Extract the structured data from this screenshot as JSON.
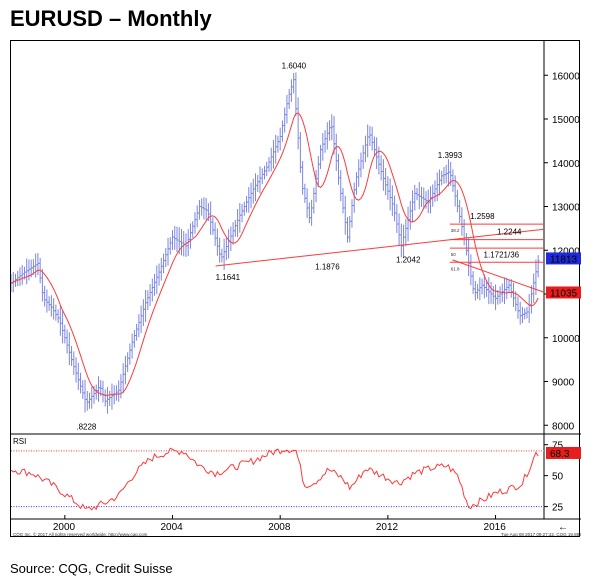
{
  "title": "EURUSD – Monthly",
  "source": "Source: CQG, Credit Suisse",
  "footer_left": "CQG Inc. © 2017 All rights reserved worldwide. http://www.cqg.com",
  "footer_right": "Tue Aug 08 2017 09:27:42, CQG 19.8826",
  "colors": {
    "price_bars": "#7b86e0",
    "moving_average": "#ff3a3a",
    "trend_lines": "#ff3a3a",
    "rsi_line": "#ff3a3a",
    "rsi_upper_line": "#ff3a3a",
    "rsi_lower_line": "#3b3bff",
    "current_price_badge": "#1f2bd8",
    "support_badge": "#e81e1e",
    "rsi_badge": "#e81e1e",
    "fib_labels": "#ff3a3a"
  },
  "chart_data": [
    {
      "type": "line",
      "title": "EURUSD – Monthly",
      "x": [
        1998.0,
        1998.5,
        1999.0,
        1999.2,
        1999.5,
        1999.8,
        2000.0,
        2000.3,
        2000.8,
        2001.3,
        2001.5,
        2002.0,
        2002.5,
        2003.0,
        2003.5,
        2004.0,
        2004.5,
        2005.0,
        2005.3,
        2005.8,
        2006.5,
        2007.0,
        2007.5,
        2008.0,
        2008.3,
        2008.5,
        2008.8,
        2009.1,
        2009.5,
        2009.9,
        2010.2,
        2010.5,
        2010.8,
        2011.3,
        2011.8,
        2012.2,
        2012.5,
        2013.0,
        2013.5,
        2014.0,
        2014.3,
        2014.8,
        2015.2,
        2015.5,
        2016.0,
        2016.5,
        2016.9,
        2017.2,
        2017.6
      ],
      "series": [
        {
          "values": [
            11250,
            11500,
            11700,
            10900,
            10700,
            10400,
            10000,
            9400,
            8500,
            8900,
            8550,
            8800,
            9900,
            10800,
            11500,
            12300,
            12100,
            13000,
            12900,
            11800,
            12800,
            13400,
            13900,
            14600,
            15500,
            15900,
            13500,
            12700,
            14300,
            14900,
            13500,
            12300,
            13600,
            14700,
            13700,
            13000,
            12100,
            13300,
            13100,
            13700,
            13800,
            12400,
            11000,
            11200,
            10900,
            11200,
            10500,
            10600,
            11810
          ],
          "note": "approximate monthly close, 4-digit quote"
        }
      ],
      "yticks": [
        8000,
        9000,
        10000,
        11000,
        12000,
        13000,
        14000,
        15000,
        16000
      ],
      "xticks": [
        "2000",
        "2004",
        "2008",
        "2012",
        "2016"
      ],
      "ylim": [
        7800,
        16600
      ],
      "xlim": [
        1998.0,
        2017.8
      ],
      "annotations": [
        {
          "text": "1.6040",
          "x": 2008.5,
          "y": 16040
        },
        {
          "text": ".8228",
          "x": 2000.8,
          "y": 8228
        },
        {
          "text": "1.3993",
          "x": 2014.3,
          "y": 13993
        },
        {
          "text": "1.2598",
          "x": 2015.5,
          "y": 12598
        },
        {
          "text": "1.2244",
          "x": 2016.5,
          "y": 12244
        },
        {
          "text": "1.1721/36",
          "x": 2016.0,
          "y": 11725
        },
        {
          "text": "1.1641",
          "x": 2005.6,
          "y": 11641
        },
        {
          "text": "1.1876",
          "x": 2009.3,
          "y": 11876
        },
        {
          "text": "1.2042",
          "x": 2012.3,
          "y": 12042
        }
      ],
      "fib_labels": [
        "38.2",
        "50",
        "61.8"
      ],
      "price_badges": [
        {
          "text": "11813",
          "value": 11813,
          "color": "#1f2bd8"
        },
        {
          "text": "11035",
          "value": 11035,
          "color": "#e81e1e"
        }
      ]
    },
    {
      "type": "line",
      "title": "RSI",
      "yticks": [
        25,
        50,
        75
      ],
      "ylim": [
        15,
        82
      ],
      "reference_lines": [
        70,
        25
      ],
      "x": [
        1998.0,
        1998.8,
        1999.5,
        2000.2,
        2000.8,
        2001.5,
        2002.0,
        2002.6,
        2003.2,
        2003.8,
        2004.4,
        2005.0,
        2005.6,
        2006.3,
        2007.0,
        2007.6,
        2008.2,
        2008.6,
        2008.9,
        2009.3,
        2009.8,
        2010.3,
        2010.6,
        2011.2,
        2011.8,
        2012.4,
        2013.0,
        2013.6,
        2014.2,
        2014.6,
        2015.0,
        2015.5,
        2016.0,
        2016.6,
        2017.0,
        2017.5
      ],
      "series": [
        {
          "values": [
            55,
            52,
            43,
            32,
            22,
            28,
            34,
            52,
            64,
            69,
            70,
            58,
            52,
            57,
            62,
            68,
            72,
            70,
            42,
            45,
            55,
            48,
            40,
            56,
            50,
            44,
            52,
            56,
            58,
            50,
            25,
            30,
            36,
            40,
            44,
            68
          ]
        }
      ],
      "badge": {
        "text": "68.3",
        "value": 68.3
      }
    }
  ]
}
